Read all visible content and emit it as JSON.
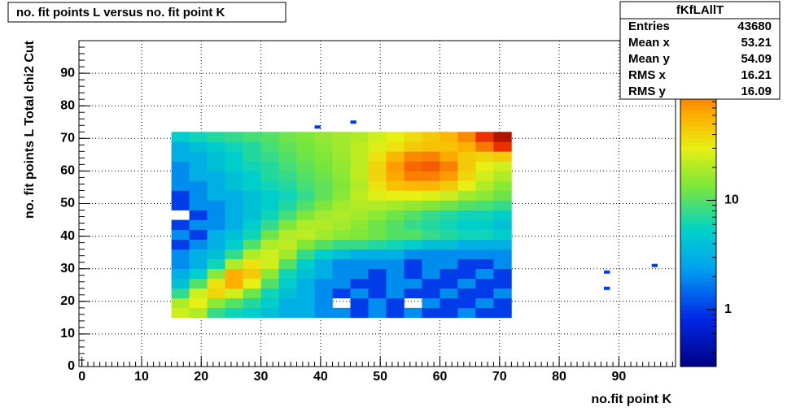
{
  "chart_data": {
    "type": "heatmap",
    "title": "no. fit points L versus no. fit point K",
    "x_label": "no.fit point K",
    "y_label": "no. fit points  L   Total chi2 Cut",
    "xlim": [
      -0.5,
      99.5
    ],
    "ylim": [
      0,
      100
    ],
    "xticks": [
      0,
      10,
      20,
      30,
      40,
      50,
      60,
      70,
      80,
      90
    ],
    "yticks": [
      0,
      10,
      20,
      30,
      40,
      50,
      60,
      70,
      80,
      90
    ],
    "grid": true,
    "z_log": true,
    "zlim": [
      0.3,
      290
    ],
    "zticks": [
      1,
      10
    ],
    "x_edges": [
      15,
      18,
      21,
      24,
      27,
      30,
      33,
      36,
      39,
      42,
      45,
      48,
      51,
      54,
      57,
      60,
      63,
      66,
      69,
      72
    ],
    "y_edges": [
      15,
      18,
      21,
      24,
      27,
      30,
      33,
      36,
      39,
      42,
      45,
      48,
      51,
      54,
      57,
      60,
      63,
      66,
      69,
      72
    ],
    "z": [
      [
        25,
        20,
        8,
        6,
        5,
        4,
        3,
        3,
        2,
        2,
        1,
        2,
        1,
        2,
        1,
        1,
        2,
        1,
        1
      ],
      [
        20,
        30,
        15,
        10,
        7,
        5,
        3,
        3,
        2,
        null,
        1,
        2,
        1,
        null,
        2,
        1,
        1,
        2,
        1
      ],
      [
        8,
        25,
        40,
        25,
        12,
        6,
        4,
        3,
        2,
        1,
        2,
        1,
        2,
        1,
        1,
        2,
        1,
        1,
        2
      ],
      [
        4,
        10,
        35,
        60,
        30,
        10,
        5,
        3,
        2,
        2,
        1,
        1,
        2,
        2,
        1,
        1,
        2,
        1,
        1
      ],
      [
        3,
        5,
        15,
        60,
        45,
        15,
        6,
        4,
        3,
        2,
        2,
        1,
        2,
        1,
        2,
        1,
        1,
        2,
        1
      ],
      [
        2,
        3,
        6,
        20,
        35,
        25,
        10,
        5,
        3,
        2,
        2,
        2,
        2,
        1,
        2,
        2,
        1,
        1,
        2
      ],
      [
        2,
        3,
        4,
        8,
        20,
        25,
        18,
        8,
        5,
        4,
        3,
        3,
        3,
        2,
        2,
        2,
        2,
        2,
        2
      ],
      [
        1,
        2,
        3,
        5,
        10,
        20,
        22,
        14,
        10,
        8,
        8,
        7,
        6,
        5,
        4,
        4,
        3,
        3,
        3
      ],
      [
        2,
        1,
        3,
        4,
        6,
        12,
        20,
        22,
        18,
        15,
        14,
        12,
        10,
        10,
        8,
        7,
        6,
        6,
        5
      ],
      [
        1,
        2,
        2,
        3,
        5,
        8,
        14,
        20,
        20,
        18,
        15,
        12,
        10,
        8,
        7,
        6,
        5,
        5,
        4
      ],
      [
        null,
        1,
        2,
        3,
        4,
        6,
        9,
        14,
        18,
        20,
        18,
        15,
        12,
        10,
        8,
        7,
        6,
        6,
        5
      ],
      [
        1,
        2,
        2,
        3,
        4,
        5,
        7,
        10,
        14,
        18,
        20,
        20,
        18,
        16,
        14,
        12,
        10,
        9,
        8
      ],
      [
        1,
        2,
        3,
        3,
        4,
        5,
        6,
        8,
        11,
        15,
        22,
        28,
        30,
        30,
        28,
        24,
        18,
        15,
        12
      ],
      [
        2,
        2,
        3,
        4,
        5,
        6,
        7,
        9,
        11,
        14,
        20,
        35,
        50,
        55,
        55,
        45,
        30,
        20,
        15
      ],
      [
        2,
        3,
        3,
        4,
        5,
        7,
        8,
        10,
        12,
        15,
        22,
        40,
        65,
        85,
        85,
        70,
        40,
        25,
        20
      ],
      [
        2,
        3,
        4,
        5,
        6,
        7,
        9,
        11,
        13,
        16,
        22,
        40,
        70,
        100,
        110,
        85,
        45,
        30,
        25
      ],
      [
        3,
        3,
        4,
        5,
        7,
        8,
        10,
        12,
        14,
        17,
        22,
        35,
        55,
        80,
        85,
        65,
        45,
        40,
        45
      ],
      [
        3,
        4,
        5,
        6,
        7,
        9,
        11,
        13,
        15,
        18,
        22,
        28,
        35,
        45,
        50,
        50,
        60,
        90,
        150
      ],
      [
        5,
        6,
        7,
        8,
        9,
        10,
        12,
        14,
        16,
        18,
        20,
        25,
        30,
        38,
        45,
        55,
        80,
        150,
        220
      ]
    ],
    "outliers": {
      "x": [
        39,
        45,
        87.5,
        87.5,
        95.5
      ],
      "y": [
        73,
        74.5,
        28.5,
        23.5,
        30.5
      ],
      "values": [
        1,
        1,
        1,
        1,
        1
      ]
    },
    "stats": {
      "name": "fKfLAllT",
      "labels": [
        "Entries",
        "Mean x",
        "Mean y",
        "RMS x",
        "RMS y"
      ],
      "values": [
        43680,
        53.21,
        54.09,
        16.21,
        16.09
      ]
    }
  }
}
